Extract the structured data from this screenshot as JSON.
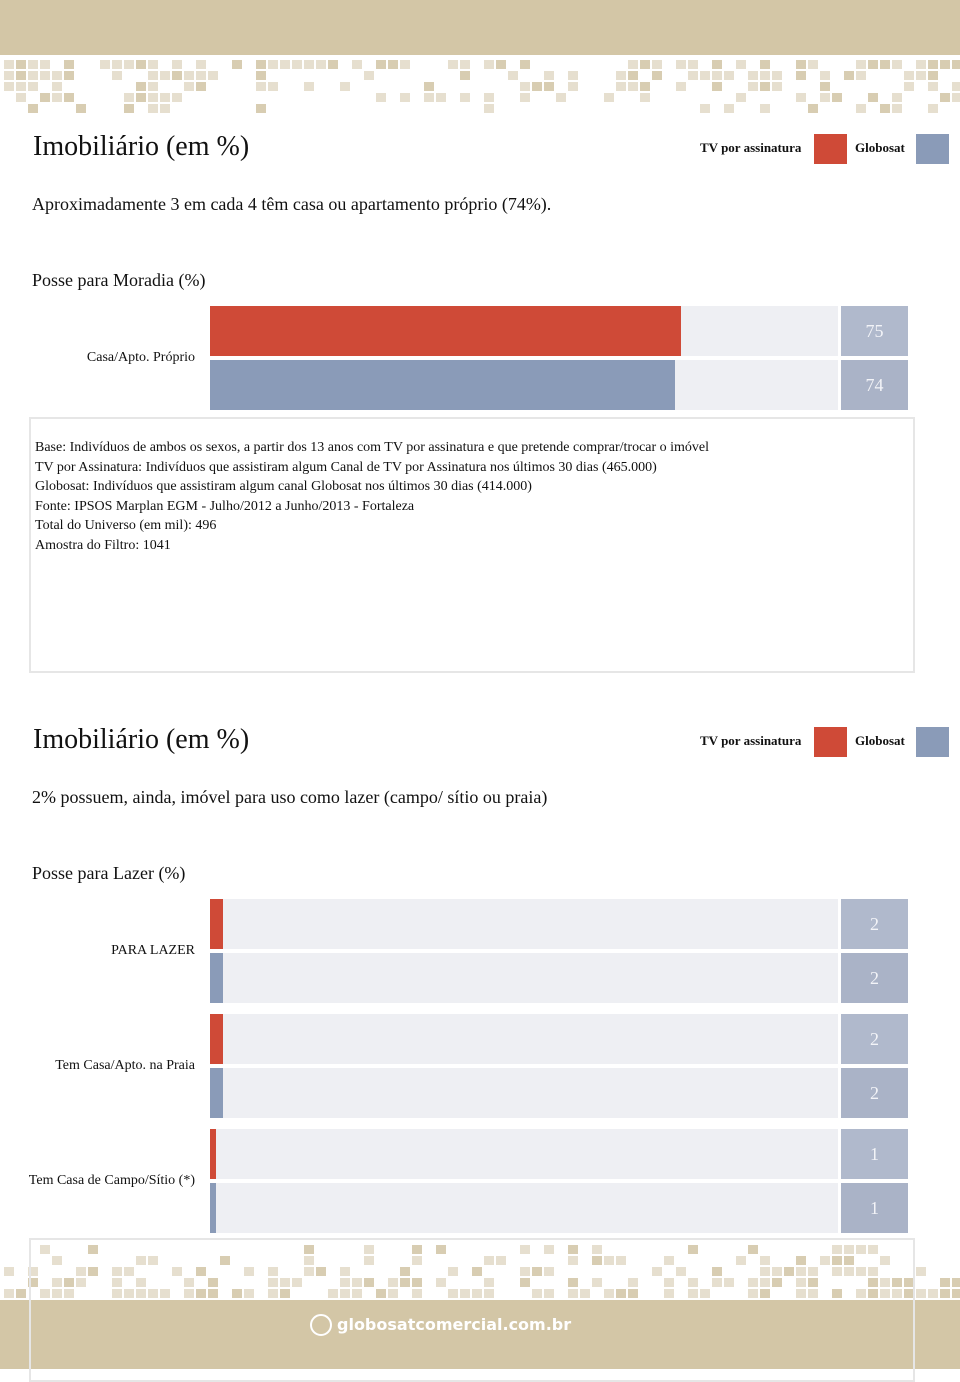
{
  "sections": [
    {
      "title": "Imobiliário (em %)",
      "subtitle": "Aproximadamente 3 em cada 4 têm casa ou apartamento próprio (74%).",
      "chart": {
        "type": "bar",
        "orientation": "horizontal",
        "title": "Posse para Moradia (%)",
        "categories": [
          "Casa/Apto. Próprio"
        ],
        "series": [
          {
            "name": "TV por assinatura",
            "color": "#cf4a37",
            "values": [
              75
            ]
          },
          {
            "name": "Globosat",
            "color": "#8a9bb8",
            "values": [
              74
            ]
          }
        ],
        "xlim": [
          0,
          100
        ]
      },
      "notes": [
        "Base: Indivíduos de ambos os sexos, a partir dos 13 anos com TV por assinatura e que pretende comprar/trocar o imóvel",
        "TV por Assinatura: Indivíduos que assistiram algum Canal de TV por Assinatura nos últimos 30 dias (465.000)",
        "Globosat: Indivíduos que assistiram algum canal Globosat nos últimos 30 dias (414.000)",
        "Fonte: IPSOS Marplan EGM - Julho/2012 a Junho/2013 - Fortaleza",
        "Total do Universo (em mil): 496",
        "Amostra do Filtro: 1041"
      ]
    },
    {
      "title": "Imobiliário (em %)",
      "subtitle": "2% possuem, ainda, imóvel para uso como lazer (campo/ sítio ou praia)",
      "chart": {
        "type": "bar",
        "orientation": "horizontal",
        "title": "Posse para Lazer (%)",
        "categories": [
          "PARA LAZER",
          "Tem Casa/Apto. na Praia",
          "Tem Casa de Campo/Sítio (*)"
        ],
        "series": [
          {
            "name": "TV por assinatura",
            "color": "#cf4a37",
            "values": [
              2,
              2,
              1
            ]
          },
          {
            "name": "Globosat",
            "color": "#8a9bb8",
            "values": [
              2,
              2,
              1
            ]
          }
        ],
        "xlim": [
          0,
          100
        ]
      }
    }
  ],
  "footer": {
    "site": "globosatcomercial.com.br"
  }
}
